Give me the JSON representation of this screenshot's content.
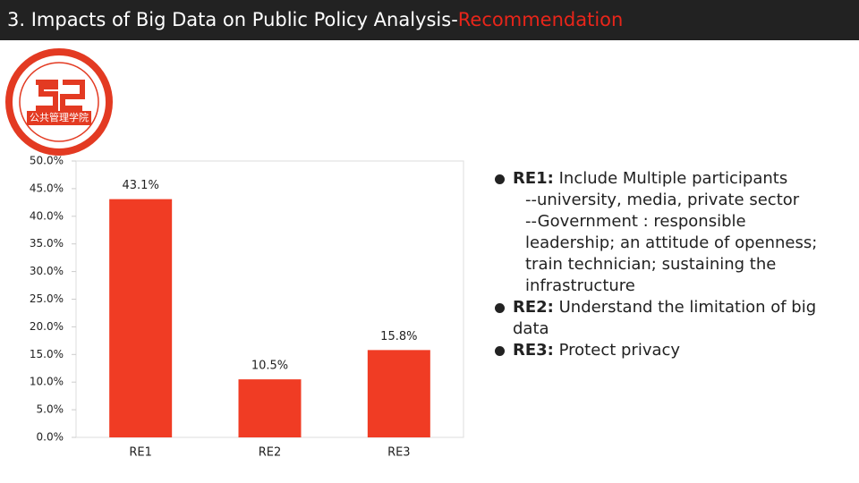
{
  "header": {
    "title": "3. Impacts of Big Data on Public Policy Analysis-",
    "highlight": "Recommendation"
  },
  "logo": {
    "text": "公共管理学院"
  },
  "chart_data": {
    "type": "bar",
    "categories": [
      "RE1",
      "RE2",
      "RE3"
    ],
    "values": [
      43.1,
      10.5,
      15.8
    ],
    "value_labels": [
      "43.1%",
      "10.5%",
      "15.8%"
    ],
    "color": "#f03c24",
    "ylim": [
      0,
      50
    ],
    "yticks": [
      {
        "value": 0,
        "label": "0.0%"
      },
      {
        "value": 5,
        "label": "5.0%"
      },
      {
        "value": 10,
        "label": "10.0%"
      },
      {
        "value": 15,
        "label": "15.0%"
      },
      {
        "value": 20,
        "label": "20.0%"
      },
      {
        "value": 25,
        "label": "25.0%"
      },
      {
        "value": 30,
        "label": "30.0%"
      },
      {
        "value": 35,
        "label": "35.0%"
      },
      {
        "value": 40,
        "label": "40.0%"
      },
      {
        "value": 45,
        "label": "45.0%"
      },
      {
        "value": 50,
        "label": "50.0%"
      }
    ]
  },
  "bullets": [
    {
      "label": "RE1:",
      "text": "Include Multiple participants",
      "subitems": [
        "--university, media, private sector",
        "--Government : responsible leadership; an attitude of openness; train technician; sustaining the infrastructure"
      ]
    },
    {
      "label": "RE2:",
      "text": "Understand the limitation of big data"
    },
    {
      "label": "RE3:",
      "text": "Protect privacy"
    }
  ]
}
